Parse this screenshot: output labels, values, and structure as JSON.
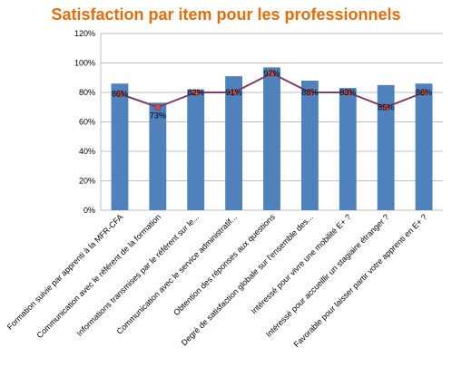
{
  "chart_data": {
    "type": "bar",
    "title": "Satisfaction par item pour les professionnels",
    "xlabel": "",
    "ylabel": "",
    "ylim": [
      0,
      120
    ],
    "ytick_labels": [
      "0%",
      "20%",
      "40%",
      "60%",
      "80%",
      "100%",
      "120%"
    ],
    "categories": [
      "Formation suivie par apprenti à la MFR-CFA",
      "Communication avec le référent de la formation",
      "Informations transmises par le référent sur le...",
      "Communication avec le service administratif...",
      "Obtention des réponses aux questions",
      "Degré de satisfaction globale sur l'ensemble des...",
      "Intéressé pour vivre une mobilité E+ ?",
      "Intéressé pour accueillir un stagiaire étranger ?",
      "Favorable pour laisser partir votre apprenti en E+ ?"
    ],
    "series": [
      {
        "type": "bar",
        "values": [
          86,
          73,
          82,
          91,
          97,
          88,
          83,
          85,
          86
        ],
        "color": "#4f81bd"
      },
      {
        "type": "line",
        "values": [
          79,
          70,
          80,
          80,
          93,
          80,
          80,
          70,
          80
        ],
        "color": "#7b3f6b",
        "marker_color": "#c0504d"
      }
    ],
    "data_labels": [
      "86%",
      "73%",
      "82%",
      "91%",
      "97%",
      "88%",
      "83%",
      "85%",
      "86%"
    ],
    "grid": true,
    "legend": "none"
  }
}
